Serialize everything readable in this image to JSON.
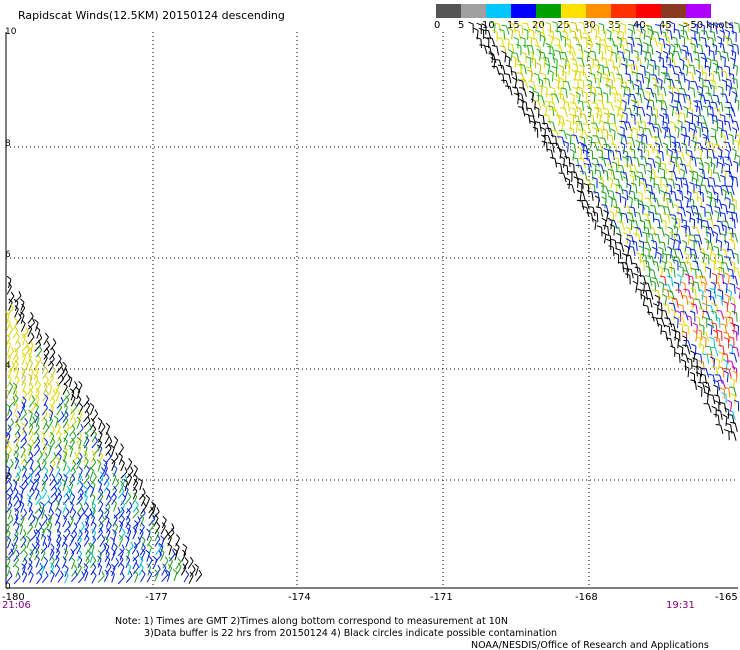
{
  "title": "Rapidscat Winds(12.5KM) 20150124 descending",
  "colorbar": {
    "colors": [
      "#555555",
      "#888888",
      "#00c8ff",
      "#0000ff",
      "#00a000",
      "#ffe000",
      "#ff8000",
      "#ff0000",
      "#e00060",
      "#804020",
      "#c000ff",
      "#5000a0"
    ],
    "labels": [
      "0",
      "5",
      "10",
      "15",
      "20",
      "25",
      "30",
      "35",
      "40",
      "45",
      ">50 knots"
    ]
  },
  "y_labels": [
    "10",
    "8",
    "6",
    "4",
    "2",
    "0"
  ],
  "x_labels": [
    "-180",
    "-177",
    "-174",
    "-171",
    "-168",
    "-165"
  ],
  "times": {
    "left": "21:06",
    "right": "19:31"
  },
  "notes": {
    "line1": "Note: 1) Times are GMT 2)Times along bottom correspond to measurement at 10N",
    "line2": "3)Data buffer is 22 hrs from 20150124 4) Black circles indicate possible contamination",
    "line3": "NOAA/NESDIS/Office of Research and Applications"
  }
}
